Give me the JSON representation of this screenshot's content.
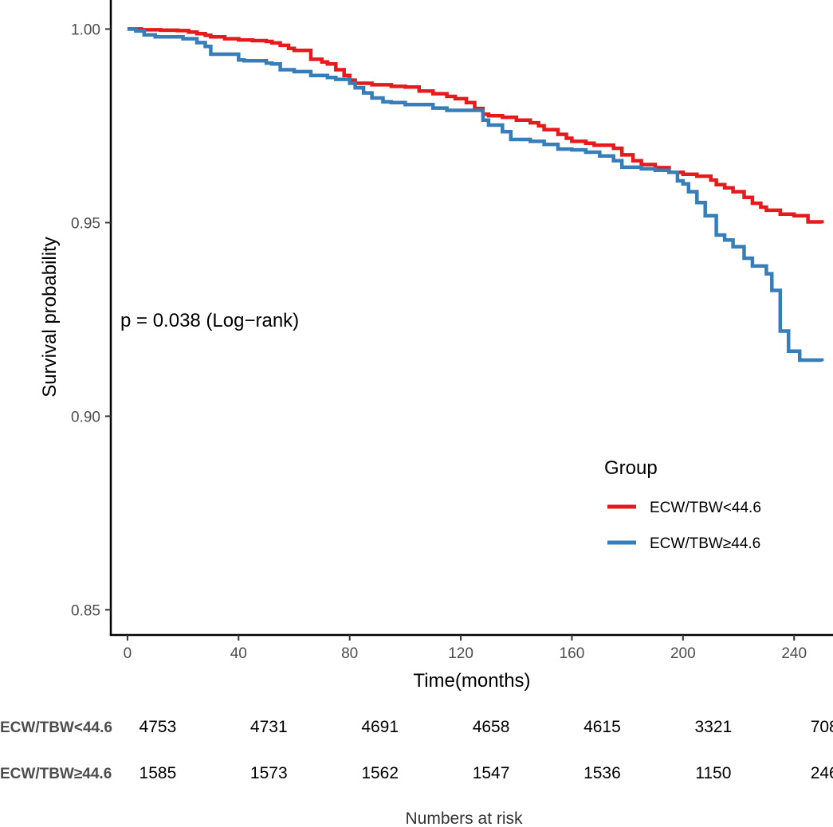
{
  "chart_data": {
    "type": "line",
    "xlabel": "Time(months)",
    "ylabel": "Survival probability",
    "xlim": [
      -6,
      254
    ],
    "ylim": [
      0.8435,
      1.0075
    ],
    "x_ticks": [
      0,
      40,
      80,
      120,
      160,
      200,
      240
    ],
    "y_ticks": [
      0.85,
      0.9,
      0.95,
      1.0
    ],
    "y_tick_labels": [
      "0.85",
      "0.90",
      "0.95",
      "1.00"
    ],
    "x_tick_labels": [
      "0",
      "40",
      "80",
      "120",
      "160",
      "200",
      "240"
    ],
    "grid": false,
    "annotation": "p = 0.038 (Log−rank)",
    "legend": {
      "title": "Group",
      "position": "right",
      "entries": [
        "ECW/TBW<44.6",
        "ECW/TBW≥44.6"
      ]
    },
    "series": [
      {
        "name": "ECW/TBW<44.6",
        "color": "#e41a1c",
        "step": true,
        "x": [
          0,
          5,
          12,
          18,
          22,
          25,
          28,
          30,
          35,
          40,
          45,
          50,
          52,
          55,
          58,
          60,
          66,
          70,
          72,
          75,
          78,
          80,
          82,
          88,
          95,
          100,
          105,
          110,
          115,
          118,
          122,
          125,
          128,
          130,
          135,
          140,
          145,
          148,
          150,
          155,
          158,
          160,
          165,
          168,
          175,
          178,
          182,
          185,
          190,
          195,
          200,
          205,
          210,
          212,
          215,
          218,
          222,
          225,
          228,
          230,
          235,
          240,
          245,
          250
        ],
        "y": [
          1.0,
          0.9998,
          0.9997,
          0.9996,
          0.9992,
          0.9988,
          0.9984,
          0.998,
          0.9975,
          0.9972,
          0.997,
          0.9968,
          0.9964,
          0.9958,
          0.995,
          0.9945,
          0.9922,
          0.9915,
          0.991,
          0.9895,
          0.988,
          0.9868,
          0.986,
          0.9856,
          0.9852,
          0.985,
          0.984,
          0.9833,
          0.9826,
          0.982,
          0.981,
          0.9795,
          0.978,
          0.9776,
          0.9772,
          0.9765,
          0.9758,
          0.975,
          0.974,
          0.9728,
          0.9718,
          0.971,
          0.9705,
          0.97,
          0.9692,
          0.9675,
          0.966,
          0.965,
          0.9642,
          0.963,
          0.9625,
          0.962,
          0.961,
          0.9598,
          0.959,
          0.958,
          0.9565,
          0.955,
          0.954,
          0.9532,
          0.9522,
          0.9518,
          0.9502,
          0.9498
        ]
      },
      {
        "name": "ECW/TBW≥44.6",
        "color": "#377eb8",
        "step": true,
        "x": [
          0,
          3,
          6,
          10,
          20,
          25,
          28,
          30,
          40,
          42,
          50,
          52,
          55,
          60,
          66,
          72,
          75,
          80,
          82,
          85,
          88,
          92,
          95,
          100,
          110,
          115,
          120,
          125,
          128,
          130,
          135,
          138,
          145,
          150,
          155,
          160,
          165,
          170,
          175,
          178,
          185,
          190,
          195,
          198,
          200,
          202,
          205,
          208,
          212,
          215,
          218,
          222,
          225,
          230,
          232,
          235,
          238,
          242,
          250
        ],
        "y": [
          1.0,
          0.9995,
          0.9985,
          0.998,
          0.9975,
          0.9965,
          0.9955,
          0.9935,
          0.992,
          0.9918,
          0.9912,
          0.991,
          0.9895,
          0.989,
          0.988,
          0.9875,
          0.987,
          0.986,
          0.9848,
          0.9835,
          0.9822,
          0.9812,
          0.981,
          0.9805,
          0.9796,
          0.979,
          0.979,
          0.979,
          0.9765,
          0.9752,
          0.9735,
          0.9715,
          0.971,
          0.9702,
          0.969,
          0.9688,
          0.9682,
          0.9672,
          0.966,
          0.9643,
          0.9639,
          0.9635,
          0.963,
          0.9608,
          0.96,
          0.958,
          0.9552,
          0.9518,
          0.9468,
          0.9455,
          0.9438,
          0.9408,
          0.9388,
          0.9368,
          0.9325,
          0.922,
          0.9168,
          0.9145,
          0.9142
        ]
      }
    ],
    "risk_table": {
      "title": "Numbers at risk",
      "times": [
        0,
        40,
        80,
        120,
        160,
        200,
        240
      ],
      "rows": [
        {
          "label": "ECW/TBW<44.6",
          "values": [
            "4753",
            "4731",
            "4691",
            "4658",
            "4615",
            "3321",
            "708"
          ]
        },
        {
          "label": "ECW/TBW≥44.6",
          "values": [
            "1585",
            "1573",
            "1562",
            "1547",
            "1536",
            "1150",
            "246"
          ]
        }
      ]
    }
  }
}
